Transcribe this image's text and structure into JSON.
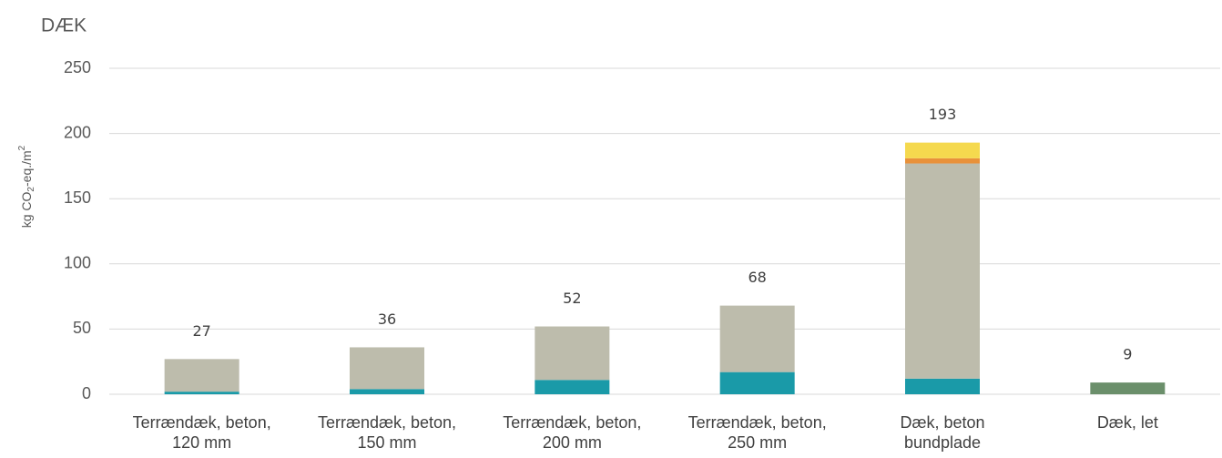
{
  "chart_data": {
    "type": "stacked_bar",
    "title": "DÆK",
    "ylabel": [
      "kg CO",
      "2",
      "-eq./m",
      "2"
    ],
    "categories": [
      [
        "Terrændæk, beton,",
        "120 mm"
      ],
      [
        "Terrændæk, beton,",
        "150 mm"
      ],
      [
        "Terrændæk, beton,",
        "200 mm"
      ],
      [
        "Terrændæk, beton,",
        "250 mm"
      ],
      [
        "Dæk, beton",
        "bundplade"
      ],
      [
        "Dæk, let"
      ]
    ],
    "series": [
      {
        "color": "#1a9aa8",
        "values": [
          2,
          4,
          11,
          17,
          12,
          null
        ]
      },
      {
        "color": "#bdbcac",
        "values": [
          25,
          32,
          41,
          51,
          165,
          null
        ]
      },
      {
        "color": "#e8913a",
        "values": [
          null,
          null,
          null,
          null,
          4,
          null
        ]
      },
      {
        "color": "#f5d94e",
        "values": [
          null,
          null,
          null,
          null,
          12,
          null
        ]
      },
      {
        "color": "#6b8f6b",
        "values": [
          null,
          null,
          null,
          null,
          null,
          9
        ]
      }
    ],
    "totals": [
      27,
      36,
      52,
      68,
      193,
      9
    ],
    "ylim": [
      0,
      250
    ],
    "yticks": [
      0,
      50,
      100,
      150,
      200,
      250
    ],
    "grid": true
  }
}
